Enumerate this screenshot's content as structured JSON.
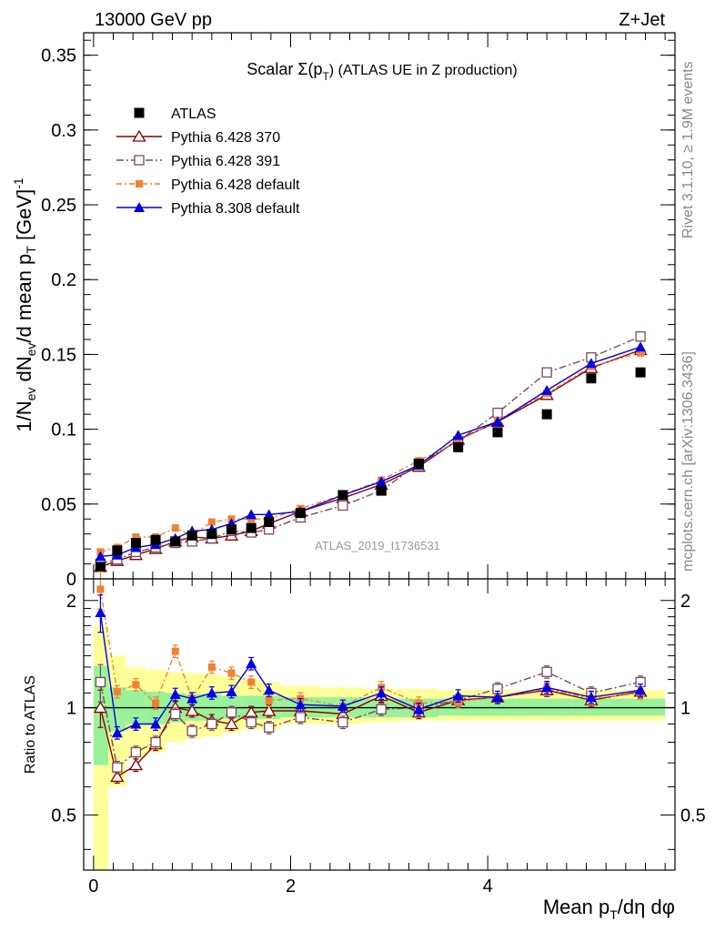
{
  "header": {
    "left": "13000 GeV pp",
    "right": "Z+Jet"
  },
  "side_labels": {
    "rivet": "Rivet 3.1.10, ≥ 1.9M events",
    "mcplots": "mcplots.cern.ch [arXiv:1306.3436]"
  },
  "colors": {
    "atlas": "#000000",
    "py370": "#8b0000",
    "py391": "#7a4a5a",
    "py6def": "#f2812f",
    "py8def": "#0000e6",
    "band_yellow": "#ffff99",
    "band_green": "#99f299"
  },
  "chart_data": [
    {
      "type": "scatter",
      "panel": "main",
      "title_main": "Scalar Σ(p",
      "title_sub": "T",
      "title_rest": ") (ATLAS UE in Z production)",
      "watermark": "ATLAS_2019_I1736531",
      "ylabel": "1/N_ev dN_ev/d mean p_T [GeV]^-1",
      "xlim": [
        -0.1,
        5.9
      ],
      "ylim": [
        0,
        0.365
      ],
      "yticks": [
        0,
        0.05,
        0.1,
        0.15,
        0.2,
        0.25,
        0.3,
        0.35
      ],
      "ytick_labels": [
        "0",
        "0.05",
        "0.1",
        "0.15",
        "0.2",
        "0.25",
        "0.3",
        "0.35"
      ],
      "x": [
        0.07,
        0.24,
        0.43,
        0.63,
        0.83,
        1.0,
        1.2,
        1.4,
        1.6,
        1.78,
        2.1,
        2.53,
        2.92,
        3.3,
        3.7,
        4.1,
        4.6,
        5.05,
        5.55
      ],
      "series": [
        {
          "name": "ATLAS",
          "style": "data",
          "values": [
            0.008,
            0.019,
            0.024,
            0.026,
            0.025,
            0.029,
            0.03,
            0.033,
            0.034,
            0.038,
            0.044,
            0.056,
            0.059,
            0.077,
            0.088,
            0.098,
            0.11,
            0.134,
            0.138
          ]
        },
        {
          "name": "Pythia 6.428 370",
          "style": "py370",
          "values": [
            0.008,
            0.012,
            0.016,
            0.02,
            0.025,
            0.028,
            0.027,
            0.029,
            0.032,
            0.037,
            0.045,
            0.054,
            0.063,
            0.075,
            0.093,
            0.105,
            0.123,
            0.141,
            0.153
          ]
        },
        {
          "name": "Pythia 6.428 391",
          "style": "py391",
          "values": [
            0.01,
            0.013,
            0.018,
            0.021,
            0.024,
            0.025,
            0.027,
            0.032,
            0.031,
            0.033,
            0.041,
            0.049,
            0.059,
            0.077,
            0.092,
            0.111,
            0.138,
            0.148,
            0.162
          ]
        },
        {
          "name": "Pythia 6.428 default",
          "style": "py6def",
          "values": [
            0.018,
            0.021,
            0.028,
            0.028,
            0.034,
            0.029,
            0.038,
            0.04,
            0.04,
            0.04,
            0.047,
            0.056,
            0.066,
            0.079,
            0.092,
            0.106,
            0.124,
            0.142,
            0.151
          ]
        },
        {
          "name": "Pythia 8.308 default",
          "style": "py8def",
          "values": [
            0.015,
            0.016,
            0.021,
            0.023,
            0.027,
            0.032,
            0.033,
            0.037,
            0.043,
            0.043,
            0.045,
            0.056,
            0.065,
            0.076,
            0.096,
            0.105,
            0.126,
            0.144,
            0.155
          ]
        }
      ],
      "legend": [
        "ATLAS",
        "Pythia 6.428 370",
        "Pythia 6.428 391",
        "Pythia 6.428 default",
        "Pythia 8.308 default"
      ]
    },
    {
      "type": "scatter",
      "panel": "ratio",
      "ylabel": "Ratio to ATLAS",
      "xlabel_main": "Mean p",
      "xlabel_sub": "T",
      "xlabel_rest": "/dη dφ",
      "xlim": [
        -0.1,
        5.9
      ],
      "ylim": [
        0.35,
        2.3
      ],
      "yscale": "log",
      "xticks": [
        0,
        2,
        4
      ],
      "xtick_labels": [
        "0",
        "2",
        "4"
      ],
      "yticks": [
        0.5,
        1,
        2
      ],
      "ytick_labels": [
        "0.5",
        "1",
        "2"
      ],
      "x": [
        0.07,
        0.24,
        0.43,
        0.63,
        0.83,
        1.0,
        1.2,
        1.4,
        1.6,
        1.78,
        2.1,
        2.53,
        2.92,
        3.3,
        3.7,
        4.1,
        4.6,
        5.05,
        5.55
      ],
      "x_edges": [
        0.0,
        0.15,
        0.33,
        0.53,
        0.73,
        0.93,
        1.1,
        1.3,
        1.5,
        1.7,
        1.9,
        2.3,
        2.75,
        3.1,
        3.5,
        3.9,
        4.3,
        4.85,
        5.3,
        5.8
      ],
      "band_yellow": [
        [
          0.3,
          1.7
        ],
        [
          0.6,
          1.4
        ],
        [
          0.72,
          1.3
        ],
        [
          0.75,
          1.28
        ],
        [
          0.8,
          1.26
        ],
        [
          0.82,
          1.25
        ],
        [
          0.83,
          1.24
        ],
        [
          0.85,
          1.22
        ],
        [
          0.87,
          1.2
        ],
        [
          0.87,
          1.18
        ],
        [
          0.9,
          1.15
        ],
        [
          0.9,
          1.14
        ],
        [
          0.91,
          1.13
        ],
        [
          0.92,
          1.13
        ],
        [
          0.92,
          1.12
        ],
        [
          0.92,
          1.12
        ],
        [
          0.92,
          1.12
        ],
        [
          0.92,
          1.12
        ],
        [
          0.92,
          1.12
        ]
      ],
      "band_green": [
        [
          0.69,
          1.31
        ],
        [
          0.86,
          1.14
        ],
        [
          0.9,
          1.12
        ],
        [
          0.9,
          1.11
        ],
        [
          0.91,
          1.1
        ],
        [
          0.92,
          1.09
        ],
        [
          0.92,
          1.09
        ],
        [
          0.93,
          1.08
        ],
        [
          0.93,
          1.08
        ],
        [
          0.93,
          1.08
        ],
        [
          0.94,
          1.07
        ],
        [
          0.94,
          1.07
        ],
        [
          0.94,
          1.06
        ],
        [
          0.94,
          1.06
        ],
        [
          0.95,
          1.06
        ],
        [
          0.95,
          1.06
        ],
        [
          0.95,
          1.06
        ],
        [
          0.95,
          1.06
        ],
        [
          0.95,
          1.06
        ]
      ],
      "series": [
        {
          "name": "Pythia 6.428 370",
          "style": "py370",
          "values": [
            1.0,
            0.64,
            0.69,
            0.79,
            1.0,
            0.98,
            0.92,
            0.9,
            0.97,
            0.98,
            0.98,
            0.96,
            1.08,
            0.97,
            1.05,
            1.07,
            1.12,
            1.05,
            1.11
          ]
        },
        {
          "name": "Pythia 6.428 391",
          "style": "py391",
          "values": [
            1.18,
            0.68,
            0.75,
            0.8,
            0.96,
            0.86,
            0.9,
            0.97,
            0.91,
            0.88,
            0.94,
            0.91,
            0.99,
            1.0,
            1.05,
            1.13,
            1.26,
            1.1,
            1.18
          ]
        },
        {
          "name": "Pythia 6.428 default",
          "style": "py6def",
          "values": [
            2.15,
            1.11,
            1.16,
            1.03,
            1.44,
            1.06,
            1.3,
            1.25,
            1.18,
            1.05,
            1.06,
            1.01,
            1.14,
            1.03,
            1.04,
            1.07,
            1.13,
            1.06,
            1.1
          ]
        },
        {
          "name": "Pythia 8.308 default",
          "style": "py8def",
          "values": [
            1.85,
            0.85,
            0.9,
            0.9,
            1.09,
            1.06,
            1.1,
            1.11,
            1.33,
            1.12,
            1.02,
            1.01,
            1.1,
            0.99,
            1.08,
            1.07,
            1.14,
            1.07,
            1.12
          ]
        }
      ]
    }
  ]
}
